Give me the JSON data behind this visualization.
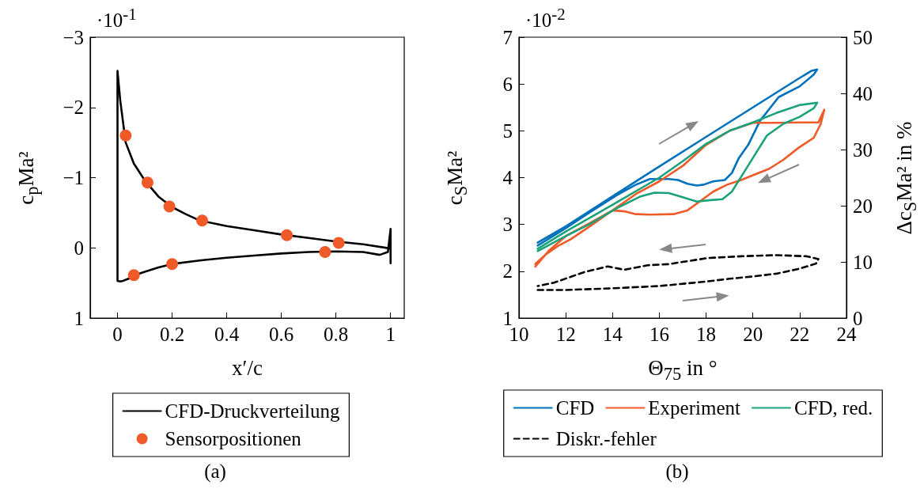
{
  "chart_data": [
    {
      "type": "line",
      "xlabel": "x′/c",
      "ylabel": "c$_{p}$Ma²",
      "xlim": [
        -0.1,
        1.05
      ],
      "ylim": [
        1,
        -3
      ],
      "xticks": [
        0,
        0.2,
        0.4,
        0.6,
        0.8,
        1
      ],
      "yticks": [
        -3,
        -2,
        -1,
        0,
        1
      ],
      "grid": false,
      "legend": "bottom",
      "annotations": [
        "·10$^{-1}$",
        "(a)"
      ],
      "series": [
        {
          "name": "CFD-Druckverteilung",
          "marker": "none",
          "color": "#000000",
          "x": [
            1,
            0.9,
            0.8,
            0.7,
            0.6,
            0.5,
            0.4,
            0.3,
            0.25,
            0.2,
            0.15,
            0.1,
            0.06,
            0.03,
            0.01,
            0,
            0,
            0,
            0,
            0.01,
            0.02,
            0.04,
            0.07,
            0.1,
            0.15,
            0.2,
            0.3,
            0.4,
            0.5,
            0.6,
            0.7,
            0.8,
            0.9,
            0.96,
            0.99,
            1,
            1
          ],
          "values": [
            0.01,
            -0.05,
            -0.09,
            -0.14,
            -0.19,
            -0.25,
            -0.31,
            -0.39,
            -0.48,
            -0.58,
            -0.73,
            -0.96,
            -1.2,
            -1.5,
            -2.1,
            -2.52,
            -1,
            0,
            0.47,
            0.48,
            0.47,
            0.44,
            0.38,
            0.34,
            0.28,
            0.23,
            0.18,
            0.14,
            0.11,
            0.08,
            0.06,
            0.05,
            0.06,
            0.1,
            0.06,
            -0.27,
            0.22
          ]
        },
        {
          "name": "Sensorpositionen",
          "type": "scatter",
          "marker": "circle",
          "color": "#f05a28",
          "x": [
            0.03,
            0.11,
            0.19,
            0.31,
            0.62,
            0.81,
            0.76,
            0.2,
            0.06
          ],
          "values": [
            -1.6,
            -0.93,
            -0.59,
            -0.39,
            -0.18,
            -0.07,
            0.06,
            0.23,
            0.39
          ]
        }
      ]
    },
    {
      "type": "line",
      "xlabel": "Θ$_{75}$ in °",
      "ylabel": "c$_{S}$Ma²",
      "y2label": "Δc$_{S}$Ma² in %",
      "xlim": [
        10,
        24
      ],
      "ylim": [
        1,
        7
      ],
      "y2lim": [
        0,
        50
      ],
      "xticks": [
        10,
        12,
        14,
        16,
        18,
        20,
        22,
        24
      ],
      "yticks": [
        1,
        2,
        3,
        4,
        5,
        6,
        7
      ],
      "y2ticks": [
        0,
        10,
        20,
        30,
        40,
        50
      ],
      "grid": false,
      "legend": "bottom",
      "annotations": [
        "·10$^{-2}$",
        "(b)"
      ],
      "series": [
        {
          "name": "CFD",
          "color": "#0072bd",
          "x": [
            10.8,
            12,
            14,
            16,
            18,
            20,
            22,
            22.5,
            22.75,
            22.6,
            22,
            21.1,
            20.3,
            19.8,
            19.4,
            19.1,
            18.8,
            18.3,
            17.9,
            17.6,
            17.2,
            16.8,
            16.4,
            15.6,
            15,
            14.2,
            13,
            12,
            10.8
          ],
          "values": [
            2.61,
            2.96,
            3.6,
            4.24,
            4.87,
            5.5,
            6.13,
            6.28,
            6.31,
            6.2,
            5.95,
            5.72,
            5.21,
            4.7,
            4.42,
            4.1,
            3.95,
            3.92,
            3.85,
            3.83,
            3.87,
            3.95,
            3.97,
            3.97,
            3.85,
            3.63,
            3.25,
            2.92,
            2.55
          ]
        },
        {
          "name": "Experiment",
          "color": "#f05a28",
          "x": [
            10.7,
            11.2,
            11.7,
            12.2,
            13,
            14,
            15,
            16,
            17,
            18,
            19,
            20,
            21,
            22,
            22.8,
            23.05,
            22.9,
            22.6,
            21.96,
            21.3,
            20.7,
            20,
            19.5,
            18.9,
            18.3,
            17.7,
            17.2,
            16.6,
            15.6,
            15,
            14.5,
            14,
            13,
            12,
            11.3,
            10.7
          ],
          "values": [
            2.16,
            2.38,
            2.55,
            2.68,
            2.95,
            3.3,
            3.65,
            3.92,
            4.25,
            4.7,
            5,
            5.17,
            5.17,
            5.18,
            5.18,
            5.45,
            5.15,
            4.85,
            4.64,
            4.38,
            4.19,
            4.05,
            3.95,
            3.85,
            3.7,
            3.48,
            3.3,
            3.22,
            3.21,
            3.22,
            3.28,
            3.3,
            3.02,
            2.75,
            2.45,
            2.1
          ]
        },
        {
          "name": "CFD, red.",
          "color": "#1aa37a",
          "x": [
            10.8,
            12,
            14,
            16,
            17,
            18,
            19,
            20,
            21,
            22,
            22.75,
            22.6,
            22,
            21.3,
            20.6,
            20.1,
            19.5,
            19.1,
            18.7,
            18.2,
            17.6,
            17,
            16.4,
            15.8,
            15.2,
            14.2,
            13,
            12,
            10.8
          ],
          "values": [
            2.48,
            2.85,
            3.42,
            4,
            4.35,
            4.72,
            5,
            5.18,
            5.38,
            5.55,
            5.6,
            5.48,
            5.3,
            5.15,
            4.9,
            4.5,
            4.02,
            3.7,
            3.54,
            3.52,
            3.49,
            3.58,
            3.67,
            3.68,
            3.6,
            3.35,
            3,
            2.75,
            2.43
          ]
        },
        {
          "name": "Diskr.-fehler",
          "color": "#000000",
          "axis": "y2",
          "line_style": "dashed",
          "x": [
            10.8,
            12,
            14,
            16,
            18,
            19,
            20,
            21,
            22,
            22.7,
            22.8,
            22.3,
            21,
            19.5,
            18.1,
            17,
            16.4,
            15.5,
            14.5,
            13.8,
            12.8,
            11.5,
            10.8
          ],
          "values": [
            5,
            5,
            5.3,
            5.7,
            6.5,
            7,
            7.4,
            7.9,
            8.8,
            9.7,
            10.5,
            11,
            11.2,
            11,
            10.7,
            10,
            9.6,
            9.4,
            8.6,
            9.2,
            8.2,
            6.3,
            5.7
          ]
        }
      ]
    }
  ]
}
